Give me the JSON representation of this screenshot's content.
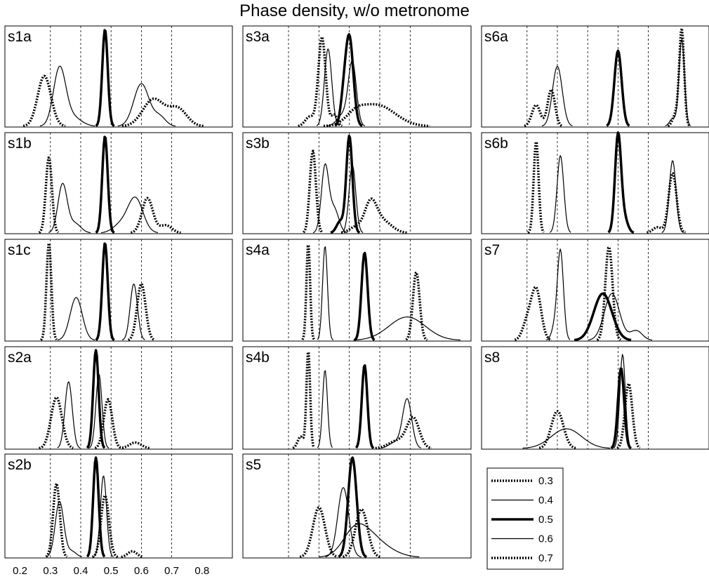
{
  "title": "Phase density, w/o metronome",
  "chart_data": {
    "type": "line",
    "title": "Phase density, w/o metronome",
    "xlim": [
      0.15,
      0.9
    ],
    "xticks": [
      "0.2",
      "0.3",
      "0.4",
      "0.5",
      "0.6",
      "0.7",
      "0.8"
    ],
    "xtick_values": [
      0.2,
      0.3,
      0.4,
      0.5,
      0.6,
      0.7,
      0.8
    ],
    "grid_lines_x": [
      0.3,
      0.4,
      0.5,
      0.6,
      0.7
    ],
    "legend": {
      "placement": "bottom-right",
      "entries": [
        {
          "label": "0.3",
          "style": "thick-dotted"
        },
        {
          "label": "0.4",
          "style": "thin-solid"
        },
        {
          "label": "0.5",
          "style": "thick-solid"
        },
        {
          "label": "0.6",
          "style": "thin-solid"
        },
        {
          "label": "0.7",
          "style": "thick-dotted"
        }
      ]
    },
    "panels": [
      {
        "label": "s1a",
        "series": [
          {
            "name": "0.3",
            "peaks": [
              [
                0.28,
                0.52,
                0.022
              ]
            ]
          },
          {
            "name": "0.4",
            "peaks": [
              [
                0.33,
                0.58,
                0.02
              ],
              [
                0.37,
                0.1,
                0.03
              ]
            ]
          },
          {
            "name": "0.5",
            "peaks": [
              [
                0.48,
                1.0,
                0.009
              ]
            ]
          },
          {
            "name": "0.6",
            "peaks": [
              [
                0.6,
                0.44,
                0.025
              ],
              [
                0.66,
                0.1,
                0.02
              ]
            ]
          },
          {
            "name": "0.7",
            "peaks": [
              [
                0.64,
                0.28,
                0.035
              ],
              [
                0.72,
                0.18,
                0.03
              ]
            ]
          }
        ]
      },
      {
        "label": "s3a",
        "series": [
          {
            "name": "0.3",
            "peaks": [
              [
                0.41,
                0.92,
                0.012
              ],
              [
                0.37,
                0.1,
                0.015
              ],
              [
                0.45,
                0.12,
                0.01
              ]
            ]
          },
          {
            "name": "0.4",
            "peaks": [
              [
                0.43,
                0.8,
                0.012
              ]
            ]
          },
          {
            "name": "0.5",
            "peaks": [
              [
                0.5,
                0.92,
                0.013
              ],
              [
                0.48,
                0.2,
                0.01
              ]
            ]
          },
          {
            "name": "0.6",
            "peaks": [
              [
                0.51,
                0.64,
                0.013
              ],
              [
                0.48,
                0.12,
                0.02
              ]
            ]
          },
          {
            "name": "0.7",
            "peaks": [
              [
                0.59,
                0.22,
                0.06
              ],
              [
                0.52,
                0.08,
                0.03
              ]
            ]
          }
        ]
      },
      {
        "label": "s6a",
        "series": [
          {
            "name": "0.3",
            "peaks": [
              [
                0.81,
                1.0,
                0.008
              ],
              [
                0.79,
                0.12,
                0.01
              ]
            ]
          },
          {
            "name": "0.4",
            "peaks": [
              [
                0.4,
                0.62,
                0.016
              ]
            ]
          },
          {
            "name": "0.5",
            "peaks": [
              [
                0.6,
                0.78,
                0.012
              ]
            ]
          },
          {
            "name": "0.6",
            "peaks": [
              [
                0.81,
                0.9,
                0.009
              ],
              [
                0.78,
                0.08,
                0.01
              ]
            ]
          },
          {
            "name": "0.7",
            "peaks": [
              [
                0.38,
                0.38,
                0.012
              ],
              [
                0.33,
                0.22,
                0.014
              ]
            ]
          }
        ]
      },
      {
        "label": "s1b",
        "series": [
          {
            "name": "0.3",
            "peaks": [
              [
                0.295,
                0.78,
                0.01
              ]
            ]
          },
          {
            "name": "0.4",
            "peaks": [
              [
                0.34,
                0.5,
                0.015
              ],
              [
                0.38,
                0.1,
                0.02
              ]
            ]
          },
          {
            "name": "0.5",
            "peaks": [
              [
                0.48,
                1.0,
                0.009
              ]
            ]
          },
          {
            "name": "0.6",
            "peaks": [
              [
                0.58,
                0.36,
                0.025
              ],
              [
                0.53,
                0.08,
                0.025
              ]
            ]
          },
          {
            "name": "0.7",
            "peaks": [
              [
                0.62,
                0.36,
                0.018
              ],
              [
                0.68,
                0.08,
                0.02
              ]
            ]
          }
        ]
      },
      {
        "label": "s3b",
        "series": [
          {
            "name": "0.3",
            "peaks": [
              [
                0.38,
                0.85,
                0.01
              ]
            ]
          },
          {
            "name": "0.4",
            "peaks": [
              [
                0.42,
                0.68,
                0.012
              ],
              [
                0.45,
                0.25,
                0.015
              ]
            ]
          },
          {
            "name": "0.5",
            "peaks": [
              [
                0.5,
                1.0,
                0.01
              ],
              [
                0.47,
                0.12,
                0.012
              ]
            ]
          },
          {
            "name": "0.6",
            "peaks": [
              [
                0.51,
                0.7,
                0.011
              ]
            ]
          },
          {
            "name": "0.7",
            "peaks": [
              [
                0.57,
                0.3,
                0.02
              ],
              [
                0.61,
                0.12,
                0.03
              ],
              [
                0.52,
                0.06,
                0.02
              ]
            ]
          }
        ]
      },
      {
        "label": "s6b",
        "series": [
          {
            "name": "0.3",
            "peaks": [
              [
                0.33,
                0.95,
                0.008
              ]
            ]
          },
          {
            "name": "0.4",
            "peaks": [
              [
                0.41,
                0.8,
                0.011
              ]
            ]
          },
          {
            "name": "0.5",
            "peaks": [
              [
                0.6,
                1.0,
                0.01
              ],
              [
                0.62,
                0.15,
                0.012
              ]
            ]
          },
          {
            "name": "0.6",
            "peaks": [
              [
                0.78,
                0.75,
                0.011
              ]
            ]
          },
          {
            "name": "0.7",
            "peaks": [
              [
                0.78,
                0.62,
                0.013
              ],
              [
                0.73,
                0.06,
                0.015
              ]
            ]
          }
        ]
      },
      {
        "label": "s1c",
        "series": [
          {
            "name": "0.3",
            "peaks": [
              [
                0.295,
                1.0,
                0.008
              ]
            ]
          },
          {
            "name": "0.4",
            "peaks": [
              [
                0.385,
                0.44,
                0.02
              ]
            ]
          },
          {
            "name": "0.5",
            "peaks": [
              [
                0.48,
                1.0,
                0.009
              ]
            ]
          },
          {
            "name": "0.6",
            "peaks": [
              [
                0.575,
                0.58,
                0.012
              ]
            ]
          },
          {
            "name": "0.7",
            "peaks": [
              [
                0.6,
                0.58,
                0.014
              ]
            ]
          }
        ]
      },
      {
        "label": "s4a",
        "series": [
          {
            "name": "0.3",
            "peaks": [
              [
                0.365,
                1.0,
                0.006
              ]
            ]
          },
          {
            "name": "0.4",
            "peaks": [
              [
                0.42,
                0.97,
                0.008
              ]
            ]
          },
          {
            "name": "0.5",
            "peaks": [
              [
                0.55,
                0.9,
                0.01
              ]
            ]
          },
          {
            "name": "0.6",
            "peaks": [
              [
                0.69,
                0.24,
                0.06
              ]
            ]
          },
          {
            "name": "0.7",
            "peaks": [
              [
                0.72,
                0.7,
                0.011
              ]
            ]
          }
        ]
      },
      {
        "label": "s7",
        "series": [
          {
            "name": "0.3",
            "peaks": [
              [
                0.33,
                0.52,
                0.016
              ],
              [
                0.3,
                0.18,
                0.015
              ]
            ]
          },
          {
            "name": "0.4",
            "peaks": [
              [
                0.41,
                0.92,
                0.01
              ],
              [
                0.39,
                0.12,
                0.01
              ]
            ]
          },
          {
            "name": "0.5",
            "peaks": [
              [
                0.55,
                0.48,
                0.03
              ]
            ]
          },
          {
            "name": "0.6",
            "peaks": [
              [
                0.58,
                0.48,
                0.025
              ],
              [
                0.66,
                0.1,
                0.02
              ]
            ]
          },
          {
            "name": "0.7",
            "peaks": [
              [
                0.57,
                0.96,
                0.012
              ]
            ]
          }
        ]
      },
      {
        "label": "s2a",
        "series": [
          {
            "name": "0.3",
            "peaks": [
              [
                0.32,
                0.52,
                0.018
              ]
            ]
          },
          {
            "name": "0.4",
            "peaks": [
              [
                0.36,
                0.68,
                0.012
              ]
            ]
          },
          {
            "name": "0.5",
            "peaks": [
              [
                0.45,
                1.0,
                0.009
              ]
            ]
          },
          {
            "name": "0.6",
            "peaks": [
              [
                0.46,
                0.76,
                0.01
              ]
            ]
          },
          {
            "name": "0.7",
            "peaks": [
              [
                0.49,
                0.5,
                0.014
              ],
              [
                0.58,
                0.06,
                0.02
              ]
            ]
          }
        ]
      },
      {
        "label": "s4b",
        "series": [
          {
            "name": "0.3",
            "peaks": [
              [
                0.365,
                1.0,
                0.006
              ],
              [
                0.34,
                0.12,
                0.01
              ]
            ]
          },
          {
            "name": "0.4",
            "peaks": [
              [
                0.42,
                0.8,
                0.008
              ]
            ]
          },
          {
            "name": "0.5",
            "peaks": [
              [
                0.55,
                0.85,
                0.009
              ]
            ]
          },
          {
            "name": "0.6",
            "peaks": [
              [
                0.69,
                0.5,
                0.015
              ],
              [
                0.65,
                0.06,
                0.02
              ]
            ]
          },
          {
            "name": "0.7",
            "peaks": [
              [
                0.71,
                0.3,
                0.02
              ],
              [
                0.66,
                0.08,
                0.03
              ]
            ]
          }
        ]
      },
      {
        "label": "s8",
        "series": [
          {
            "name": "0.3",
            "peaks": [
              [
                0.4,
                0.38,
                0.02
              ]
            ]
          },
          {
            "name": "0.4",
            "peaks": [
              [
                0.43,
                0.2,
                0.05
              ]
            ]
          },
          {
            "name": "0.5",
            "peaks": [
              [
                0.61,
                0.82,
                0.01
              ]
            ]
          },
          {
            "name": "0.6",
            "peaks": [
              [
                0.615,
                0.96,
                0.009
              ]
            ]
          },
          {
            "name": "0.7",
            "peaks": [
              [
                0.635,
                0.66,
                0.012
              ]
            ]
          }
        ]
      },
      {
        "label": "s2b",
        "series": [
          {
            "name": "0.3",
            "peaks": [
              [
                0.32,
                0.74,
                0.011
              ]
            ]
          },
          {
            "name": "0.4",
            "peaks": [
              [
                0.33,
                0.56,
                0.014
              ],
              [
                0.37,
                0.06,
                0.015
              ]
            ]
          },
          {
            "name": "0.5",
            "peaks": [
              [
                0.45,
                1.0,
                0.009
              ]
            ]
          },
          {
            "name": "0.6",
            "peaks": [
              [
                0.475,
                0.82,
                0.01
              ]
            ]
          },
          {
            "name": "0.7",
            "peaks": [
              [
                0.48,
                0.62,
                0.013
              ],
              [
                0.57,
                0.06,
                0.015
              ]
            ]
          }
        ]
      },
      {
        "label": "s5",
        "series": [
          {
            "name": "0.3",
            "peaks": [
              [
                0.4,
                0.5,
                0.02
              ]
            ]
          },
          {
            "name": "0.4",
            "peaks": [
              [
                0.48,
                0.7,
                0.018
              ]
            ]
          },
          {
            "name": "0.5",
            "peaks": [
              [
                0.51,
                1.0,
                0.014
              ]
            ]
          },
          {
            "name": "0.6",
            "peaks": [
              [
                0.52,
                0.28,
                0.04
              ],
              [
                0.58,
                0.14,
                0.04
              ],
              [
                0.64,
                0.04,
                0.04
              ]
            ]
          },
          {
            "name": "0.7",
            "peaks": [
              [
                0.54,
                0.48,
                0.02
              ]
            ]
          }
        ]
      }
    ]
  }
}
